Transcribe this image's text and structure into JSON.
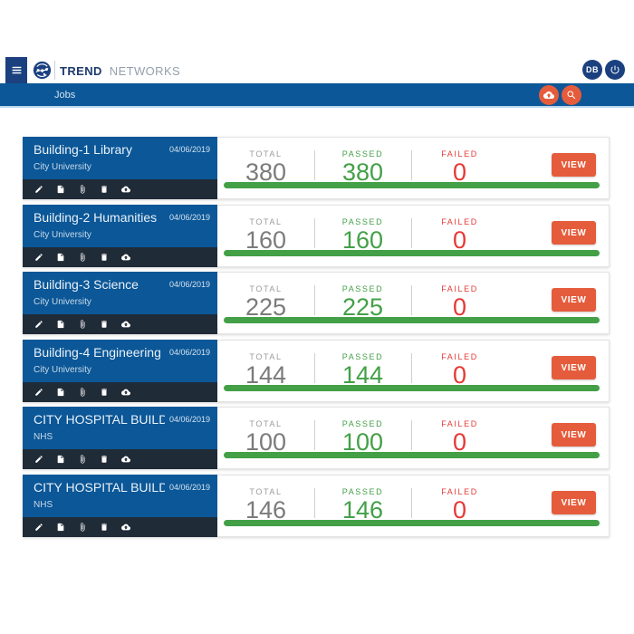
{
  "header": {
    "brand_primary": "TREND",
    "brand_secondary": "NETWORKS",
    "avatar_initials": "DB",
    "icons": [
      "menu-icon",
      "logo-globe-icon",
      "power-icon"
    ]
  },
  "nav": {
    "breadcrumb": "Jobs",
    "icons": [
      "cloud-upload-icon",
      "search-icon"
    ]
  },
  "labels": {
    "total": "TOTAL",
    "passed": "PASSED",
    "failed": "FAILED"
  },
  "actions": {
    "view": "VIEW"
  },
  "card_actions": [
    {
      "id": "edit",
      "icon": "edit-icon"
    },
    {
      "id": "file",
      "icon": "file-icon"
    },
    {
      "id": "attach",
      "icon": "attachment-icon"
    },
    {
      "id": "delete",
      "icon": "delete-icon"
    },
    {
      "id": "upload",
      "icon": "cloud-upload-icon"
    }
  ],
  "jobs": [
    {
      "title": "Building-1 Library",
      "client": "City University",
      "date": "04/06/2019",
      "total": 380,
      "passed": 380,
      "failed": 0
    },
    {
      "title": "Building-2 Humanities",
      "client": "City University",
      "date": "04/06/2019",
      "total": 160,
      "passed": 160,
      "failed": 0
    },
    {
      "title": "Building-3 Science",
      "client": "City University",
      "date": "04/06/2019",
      "total": 225,
      "passed": 225,
      "failed": 0
    },
    {
      "title": "Building-4 Engineering",
      "client": "City University",
      "date": "04/06/2019",
      "total": 144,
      "passed": 144,
      "failed": 0
    },
    {
      "title": "CITY HOSPITAL BUILDI...",
      "client": "NHS",
      "date": "04/06/2019",
      "total": 100,
      "passed": 100,
      "failed": 0
    },
    {
      "title": "CITY HOSPITAL BUILDI...",
      "client": "NHS",
      "date": "04/06/2019",
      "total": 146,
      "passed": 146,
      "failed": 0
    }
  ],
  "colors": {
    "brand_blue": "#0b5797",
    "navy": "#1b4080",
    "dark_strip": "#202b38",
    "orange": "#e55c3c",
    "green": "#43a047",
    "red": "#e53935",
    "gray_total": "#7b7b7b"
  }
}
